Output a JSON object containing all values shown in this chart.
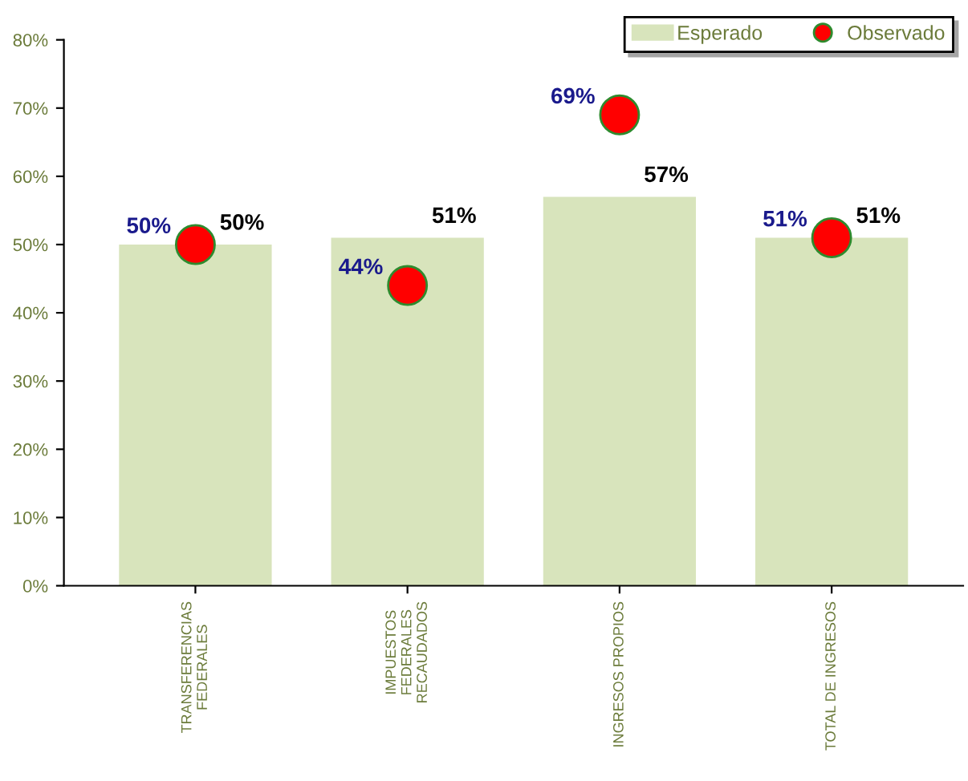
{
  "chart_data": {
    "type": "bar",
    "categories": [
      "TRANSFERENCIAS\nFEDERALES",
      "IMPUESTOS\nFEDERALES\nRECAUDADOS",
      "INGRESOS PROPIOS",
      "TOTAL DE INGRESOS"
    ],
    "series": [
      {
        "name": "Esperado",
        "type": "bar",
        "color": "#d8e4bc",
        "values": [
          50,
          51,
          57,
          51
        ],
        "value_labels": [
          "50%",
          "51%",
          "57%",
          "51%"
        ]
      },
      {
        "name": "Observado",
        "type": "scatter",
        "color": "#ff0000",
        "values": [
          50,
          44,
          69,
          51
        ],
        "value_labels": [
          "50%",
          "44%",
          "69%",
          "51%"
        ]
      }
    ],
    "ylim": [
      0,
      80
    ],
    "yticks": [
      {
        "value": 0,
        "label": "0%"
      },
      {
        "value": 10,
        "label": "10%"
      },
      {
        "value": 20,
        "label": "20%"
      },
      {
        "value": 30,
        "label": "30%"
      },
      {
        "value": 40,
        "label": "40%"
      },
      {
        "value": 50,
        "label": "50%"
      },
      {
        "value": 60,
        "label": "60%"
      },
      {
        "value": 70,
        "label": "70%"
      },
      {
        "value": 80,
        "label": "80%"
      }
    ],
    "grid": false,
    "legend": "top right",
    "marker": "circle"
  }
}
